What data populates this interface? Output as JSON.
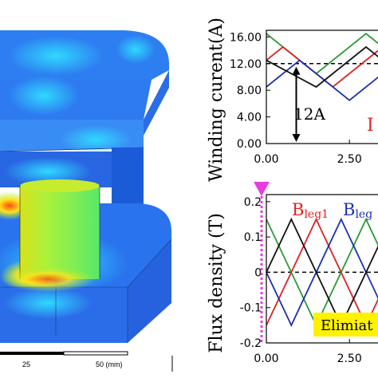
{
  "fem_view": {
    "scale_bar_labels": [
      "25",
      "50 (mm)"
    ]
  },
  "chart_data": [
    {
      "type": "line",
      "ylabel": "Winding curent(A)",
      "xlim": [
        0,
        3.6
      ],
      "ylim": [
        0,
        17
      ],
      "x_ticks": [
        "0.00",
        "2.50"
      ],
      "y_ticks": [
        "0.00",
        "4.00",
        "8.00",
        "12.00",
        "16.00"
      ],
      "y_tick_values": [
        0,
        4,
        8,
        12,
        16
      ],
      "reference_line": {
        "y": 12,
        "style": "dashed"
      },
      "annotation": {
        "text": "12A",
        "arrow_x": 0.9,
        "from": 0,
        "to": 12
      },
      "current_label": {
        "text": "I",
        "color": "#e0201f"
      },
      "series": [
        {
          "color": "#2a9a33",
          "x": [
            0,
            1.5,
            3,
            3.6
          ],
          "y": [
            16.5,
            10.5,
            16.5,
            14.1
          ]
        },
        {
          "color": "#e0201f",
          "x": [
            0,
            0.5,
            2,
            3.5,
            3.6
          ],
          "y": [
            12.5,
            14.5,
            8.5,
            14.5,
            14.1
          ]
        },
        {
          "color": "#1a2fb0",
          "x": [
            0,
            1,
            2.5,
            3.6
          ],
          "y": [
            8.5,
            12.5,
            6.5,
            10.9
          ]
        },
        {
          "color": "#111111",
          "x": [
            0,
            1.5,
            3,
            3.6
          ],
          "y": [
            12.5,
            8.5,
            14.5,
            12.1
          ]
        }
      ]
    },
    {
      "type": "line",
      "ylabel": "Flux density (T)",
      "xlim": [
        0,
        3.6
      ],
      "ylim": [
        -0.2,
        0.22
      ],
      "x_ticks": [
        "0.00",
        "2.50"
      ],
      "y_ticks": [
        "0.2",
        "0.1",
        "0",
        "-0.1",
        "-0.2"
      ],
      "y_tick_values": [
        0.2,
        0.1,
        0,
        -0.1,
        -0.2
      ],
      "reference_line": {
        "y": 0,
        "style": "dashed"
      },
      "legend": [
        {
          "main": "B",
          "sub": "leg1",
          "color": "#e0201f"
        },
        {
          "main": "B",
          "sub": "leg",
          "color": "#1a2fb0"
        }
      ],
      "banner_text": "Elimiat",
      "banner_color": "#fff200",
      "marker_color": "#e83ce0",
      "series": [
        {
          "color": "#e0201f",
          "x": [
            0,
            1.5,
            3,
            3.6
          ],
          "y": [
            -0.15,
            0.15,
            -0.15,
            -0.03
          ]
        },
        {
          "color": "#2a9a33",
          "x": [
            0,
            1.5,
            3,
            3.6
          ],
          "y": [
            0.15,
            -0.15,
            0.15,
            0.03
          ]
        },
        {
          "color": "#1a2fb0",
          "x": [
            0,
            0.75,
            2.25,
            3.6
          ],
          "y": [
            0.0,
            -0.15,
            0.15,
            -0.12
          ]
        },
        {
          "color": "#111111",
          "x": [
            0,
            0.75,
            2.25,
            3.6
          ],
          "y": [
            0.0,
            0.15,
            -0.15,
            0.12
          ]
        }
      ]
    }
  ]
}
